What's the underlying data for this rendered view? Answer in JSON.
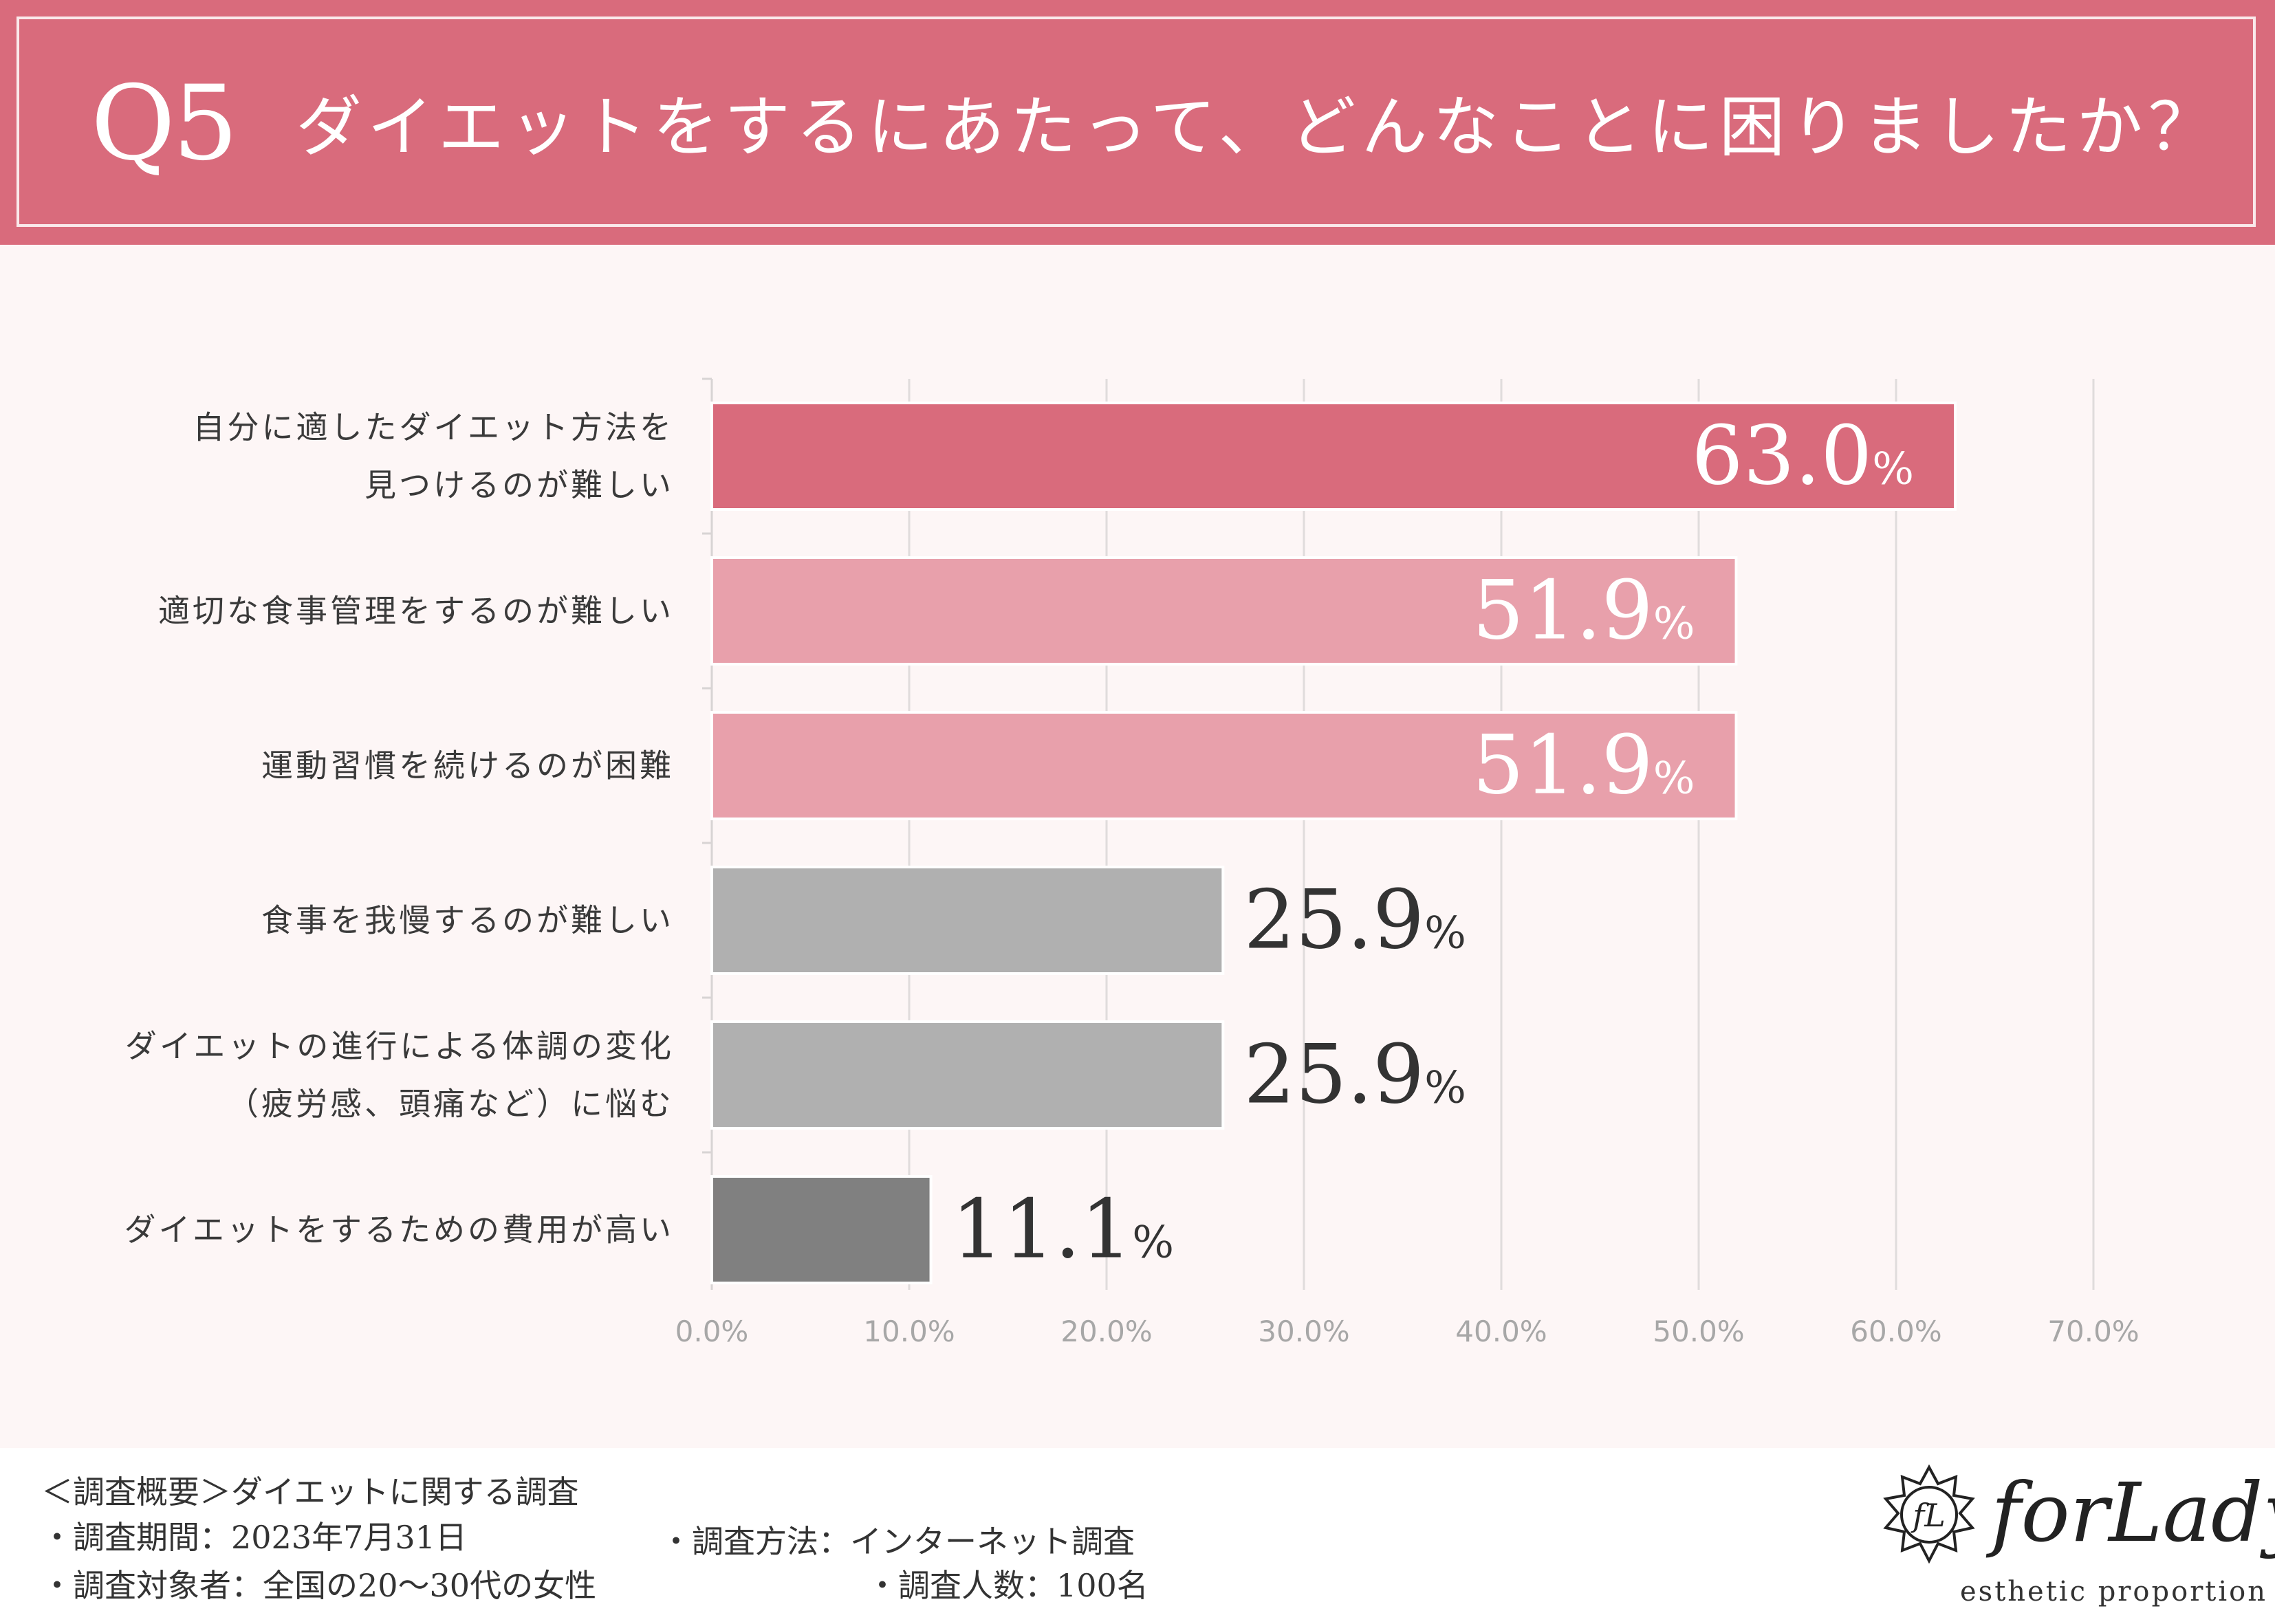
{
  "header": {
    "question_number": "Q5",
    "question_text": "ダイエットをするにあたって、どんなことに困りましたか？"
  },
  "chart_data": {
    "type": "bar",
    "orientation": "horizontal",
    "categories": [
      [
        "自分に適したダイエット方法を",
        "見つけるのが難しい"
      ],
      [
        "適切な食事管理をするのが難しい"
      ],
      [
        "運動習慣を続けるのが困難"
      ],
      [
        "食事を我慢するのが難しい"
      ],
      [
        "ダイエットの進行による体調の変化",
        "（疲労感、頭痛など）に悩む"
      ],
      [
        "ダイエットをするための費用が高い"
      ]
    ],
    "values": [
      63.0,
      51.9,
      51.9,
      25.9,
      25.9,
      11.1
    ],
    "value_labels": [
      "63.0",
      "51.9",
      "51.9",
      "25.9",
      "25.9",
      "11.1"
    ],
    "value_unit": "%",
    "bar_colors": [
      "#d96b7c",
      "#e8a0ab",
      "#e8a0ab",
      "#b0b0b0",
      "#b0b0b0",
      "#808080"
    ],
    "value_label_colors": [
      "#ffffff",
      "#ffffff",
      "#ffffff",
      "#333333",
      "#333333",
      "#333333"
    ],
    "value_label_inside": [
      true,
      true,
      true,
      false,
      false,
      false
    ],
    "xlim": [
      0,
      70
    ],
    "xticks": [
      0,
      10,
      20,
      30,
      40,
      50,
      60,
      70
    ],
    "xtick_labels": [
      "0.0%",
      "10.0%",
      "20.0%",
      "30.0%",
      "40.0%",
      "50.0%",
      "60.0%",
      "70.0%"
    ],
    "grid": true,
    "title": "",
    "xlabel": "",
    "ylabel": ""
  },
  "footer": {
    "survey_title": "＜調査概要＞ダイエットに関する調査",
    "period": "・調査期間：2023年7月31日",
    "method": "・調査方法：インターネット調査",
    "target": "・調査対象者：全国の20〜30代の女性",
    "count": "・調査人数：100名"
  },
  "logo": {
    "mark": "fL",
    "name": "forLady",
    "tagline": "esthetic proportion"
  }
}
